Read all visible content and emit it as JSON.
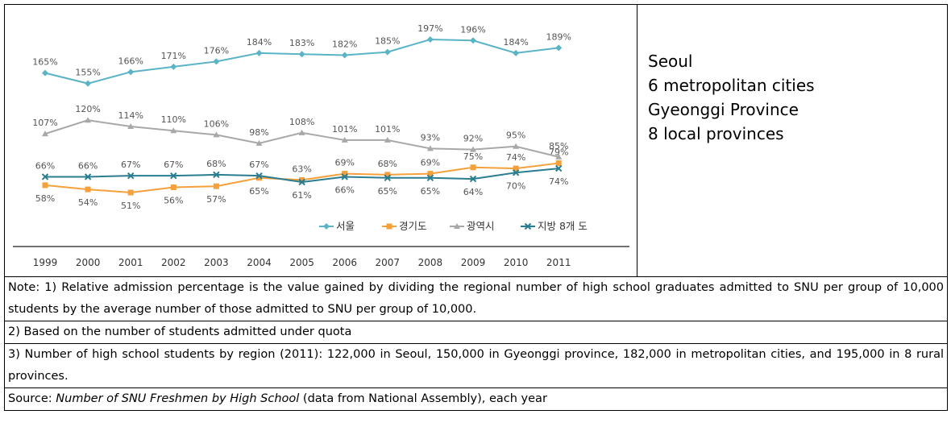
{
  "chart_data": {
    "type": "line",
    "categories": [
      "1999",
      "2000",
      "2001",
      "2002",
      "2003",
      "2004",
      "2005",
      "2006",
      "2007",
      "2008",
      "2009",
      "2010",
      "2011"
    ],
    "series": [
      {
        "name": "서울",
        "color": "#5ab4c5",
        "marker": "diamond",
        "values": [
          165,
          155,
          166,
          171,
          176,
          184,
          183,
          182,
          185,
          197,
          196,
          184,
          189
        ],
        "value_labels": [
          "165%",
          "155%",
          "166%",
          "171%",
          "176%",
          "184%",
          "183%",
          "182%",
          "185%",
          "197%",
          "196%",
          "184%",
          "189%"
        ]
      },
      {
        "name": "경기도",
        "color": "#f5a03a",
        "marker": "square",
        "values": [
          58,
          54,
          51,
          56,
          57,
          65,
          63,
          69,
          68,
          69,
          75,
          74,
          79
        ],
        "value_labels": [
          "58%",
          "54%",
          "51%",
          "56%",
          "57%",
          "65%",
          "63%",
          "69%",
          "68%",
          "69%",
          "75%",
          "74%",
          "79%"
        ]
      },
      {
        "name": "광역시",
        "color": "#a8a8a8",
        "marker": "triangle",
        "values": [
          107,
          120,
          114,
          110,
          106,
          98,
          108,
          101,
          101,
          93,
          92,
          95,
          85
        ],
        "value_labels": [
          "107%",
          "120%",
          "114%",
          "110%",
          "106%",
          "98%",
          "108%",
          "101%",
          "101%",
          "93%",
          "92%",
          "95%",
          "85%"
        ]
      },
      {
        "name": "지방 8개 도",
        "color": "#2a7d8f",
        "marker": "x",
        "values": [
          66,
          66,
          67,
          67,
          68,
          67,
          61,
          66,
          65,
          65,
          64,
          70,
          74
        ],
        "value_labels": [
          "66%",
          "66%",
          "67%",
          "67%",
          "68%",
          "67%",
          "61%",
          "66%",
          "65%",
          "65%",
          "64%",
          "70%",
          "74%"
        ]
      }
    ]
  },
  "legend_translation": [
    "Seoul",
    "6 metropolitan cities",
    "Gyeonggi Province",
    "8 local provinces"
  ],
  "notes": {
    "note1": "Note: 1) Relative admission percentage is the value gained by dividing the regional number of high school graduates admitted to SNU per group of 10,000 students by the average number of those admitted to SNU per group of 10,000.",
    "note2": "2) Based on the number of students admitted under quota",
    "note3": "3) Number of high school students by region (2011): 122,000 in Seoul, 150,000 in Gyeonggi province, 182,000 in metropolitan cities, and 195,000 in 8 rural provinces.",
    "source_prefix": "Source: ",
    "source_title": "Number of SNU Freshmen by High School",
    "source_suffix": " (data from National Assembly), each year"
  }
}
